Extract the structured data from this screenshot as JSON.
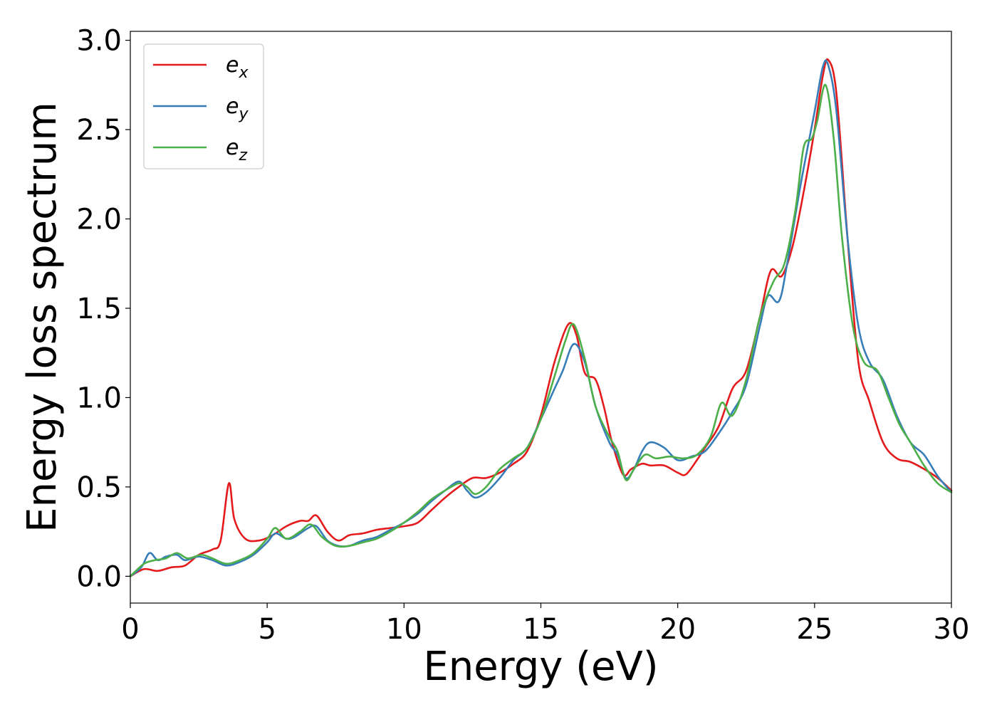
{
  "chart_data": {
    "type": "line",
    "xlabel": "Energy (eV)",
    "ylabel": "Energy loss spectrum",
    "xlim": [
      0,
      30
    ],
    "ylim": [
      -0.15,
      3.05
    ],
    "xticks": [
      0,
      5,
      10,
      15,
      20,
      25,
      30
    ],
    "xtick_labels": [
      "0",
      "5",
      "10",
      "15",
      "20",
      "25",
      "30"
    ],
    "yticks": [
      0.0,
      0.5,
      1.0,
      1.5,
      2.0,
      2.5,
      3.0
    ],
    "ytick_labels": [
      "0.0",
      "0.5",
      "1.0",
      "1.5",
      "2.0",
      "2.5",
      "3.0"
    ],
    "grid": false,
    "legend_position": "top-left",
    "series": [
      {
        "name": "e_x",
        "label_main": "e",
        "label_sub": "x",
        "color": "#e41a1c",
        "x": [
          0,
          0.5,
          1,
          1.5,
          2,
          2.5,
          3,
          3.3,
          3.6,
          3.8,
          4.2,
          4.7,
          5.2,
          5.7,
          6.2,
          6.5,
          6.8,
          7.2,
          7.6,
          8,
          8.5,
          9,
          9.5,
          10,
          10.5,
          11,
          11.5,
          12,
          12.5,
          13,
          13.5,
          14,
          14.5,
          15,
          15.5,
          16,
          16.3,
          16.6,
          17,
          17.3,
          17.6,
          18,
          18.3,
          18.7,
          19,
          19.5,
          20,
          20.3,
          20.7,
          21,
          21.5,
          22,
          22.5,
          23,
          23.4,
          23.8,
          24.2,
          24.6,
          25,
          25.3,
          25.5,
          25.8,
          26.2,
          26.6,
          27,
          27.5,
          28,
          28.5,
          29,
          29.5,
          30
        ],
        "y": [
          0.0,
          0.04,
          0.03,
          0.05,
          0.06,
          0.12,
          0.15,
          0.2,
          0.52,
          0.32,
          0.21,
          0.2,
          0.23,
          0.28,
          0.31,
          0.31,
          0.34,
          0.25,
          0.2,
          0.23,
          0.24,
          0.26,
          0.27,
          0.28,
          0.3,
          0.37,
          0.44,
          0.5,
          0.55,
          0.55,
          0.58,
          0.63,
          0.7,
          0.9,
          1.2,
          1.41,
          1.35,
          1.14,
          1.1,
          0.95,
          0.75,
          0.57,
          0.6,
          0.63,
          0.62,
          0.62,
          0.58,
          0.57,
          0.65,
          0.72,
          0.84,
          1.05,
          1.15,
          1.45,
          1.71,
          1.68,
          1.85,
          2.15,
          2.5,
          2.8,
          2.89,
          2.7,
          1.9,
          1.2,
          0.98,
          0.75,
          0.66,
          0.64,
          0.6,
          0.55,
          0.48
        ]
      },
      {
        "name": "e_y",
        "label_main": "e",
        "label_sub": "y",
        "color": "#377eb8",
        "x": [
          0,
          0.4,
          0.7,
          1,
          1.3,
          1.7,
          2,
          2.5,
          3,
          3.5,
          4,
          4.5,
          5,
          5.3,
          5.7,
          6,
          6.5,
          6.8,
          7.2,
          7.6,
          8,
          8.5,
          9,
          9.5,
          10,
          10.5,
          11,
          11.5,
          12,
          12.3,
          12.6,
          13,
          13.5,
          14,
          14.5,
          15,
          15.5,
          15.8,
          16.2,
          16.6,
          17,
          17.5,
          17.8,
          18.1,
          18.4,
          18.7,
          19,
          19.5,
          20,
          20.5,
          21,
          21.5,
          22,
          22.5,
          23,
          23.3,
          23.7,
          24,
          24.5,
          25,
          25.3,
          25.5,
          25.8,
          26.2,
          26.6,
          27,
          27.5,
          28,
          28.5,
          29,
          29.5,
          30
        ],
        "y": [
          0.0,
          0.05,
          0.13,
          0.09,
          0.11,
          0.12,
          0.09,
          0.11,
          0.09,
          0.06,
          0.08,
          0.12,
          0.19,
          0.24,
          0.21,
          0.22,
          0.27,
          0.28,
          0.2,
          0.17,
          0.17,
          0.2,
          0.22,
          0.26,
          0.3,
          0.35,
          0.42,
          0.48,
          0.53,
          0.48,
          0.44,
          0.47,
          0.55,
          0.65,
          0.72,
          0.88,
          1.05,
          1.15,
          1.3,
          1.2,
          0.95,
          0.75,
          0.68,
          0.55,
          0.6,
          0.7,
          0.75,
          0.72,
          0.65,
          0.67,
          0.7,
          0.8,
          0.92,
          1.07,
          1.4,
          1.57,
          1.54,
          1.75,
          2.2,
          2.6,
          2.85,
          2.86,
          2.6,
          1.9,
          1.4,
          1.2,
          1.1,
          0.9,
          0.75,
          0.68,
          0.56,
          0.47
        ]
      },
      {
        "name": "e_z",
        "label_main": "e",
        "label_sub": "z",
        "color": "#4daf4a",
        "x": [
          0,
          0.5,
          0.9,
          1.3,
          1.7,
          2.1,
          2.6,
          3,
          3.5,
          4,
          4.5,
          5,
          5.3,
          5.7,
          6.2,
          6.6,
          7,
          7.5,
          8,
          8.5,
          9,
          9.5,
          10,
          10.5,
          11,
          11.5,
          12,
          12.3,
          12.6,
          13,
          13.5,
          14,
          14.5,
          15,
          15.5,
          15.9,
          16.2,
          16.6,
          17,
          17.5,
          17.8,
          18.1,
          18.4,
          18.8,
          19.2,
          19.7,
          20.2,
          20.7,
          21.2,
          21.6,
          22,
          22.5,
          23,
          23.5,
          23.9,
          24.3,
          24.6,
          24.9,
          25.1,
          25.4,
          25.7,
          26,
          26.4,
          26.8,
          27.3,
          27.7,
          28.1,
          28.5,
          29,
          29.5,
          30
        ],
        "y": [
          0.0,
          0.07,
          0.09,
          0.1,
          0.13,
          0.1,
          0.12,
          0.1,
          0.07,
          0.09,
          0.13,
          0.21,
          0.27,
          0.21,
          0.25,
          0.29,
          0.22,
          0.17,
          0.17,
          0.19,
          0.21,
          0.25,
          0.3,
          0.36,
          0.43,
          0.48,
          0.52,
          0.5,
          0.46,
          0.5,
          0.6,
          0.66,
          0.72,
          0.88,
          1.12,
          1.32,
          1.41,
          1.22,
          0.95,
          0.78,
          0.7,
          0.54,
          0.6,
          0.68,
          0.66,
          0.67,
          0.66,
          0.68,
          0.78,
          0.97,
          0.9,
          1.1,
          1.45,
          1.65,
          1.75,
          2.05,
          2.4,
          2.45,
          2.55,
          2.75,
          2.45,
          1.9,
          1.4,
          1.2,
          1.15,
          1.0,
          0.85,
          0.75,
          0.62,
          0.52,
          0.47
        ]
      }
    ]
  }
}
